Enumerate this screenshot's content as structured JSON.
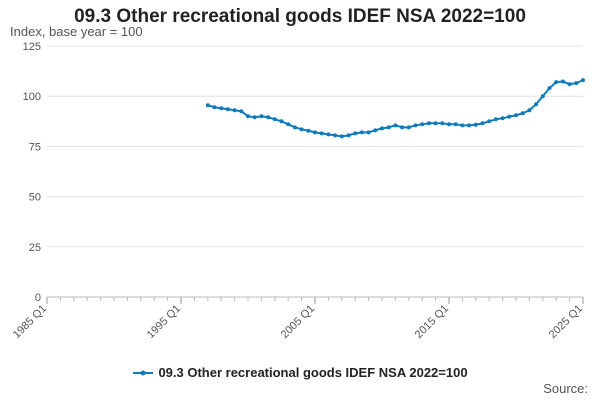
{
  "chart_data": {
    "type": "line",
    "title": "09.3 Other recreational goods IDEF NSA 2022=100",
    "ylabel": "Index, base year = 100",
    "xlabel": "",
    "ylim": [
      0,
      125
    ],
    "yticks": [
      0,
      25,
      50,
      75,
      100,
      125
    ],
    "xticks": [
      "1985 Q1",
      "1995 Q1",
      "2005 Q1",
      "2015 Q1",
      "2025 Q1"
    ],
    "xtick_years": [
      1985,
      1995,
      2005,
      2015,
      2025
    ],
    "xlim": [
      1985,
      2025
    ],
    "grid": true,
    "legend_position": "bottom",
    "series": [
      {
        "name": "09.3 Other recreational goods IDEF NSA 2022=100",
        "color": "#0f7bbd",
        "x": [
          1997.0,
          1997.5,
          1998.0,
          1998.5,
          1999.0,
          1999.5,
          2000.0,
          2000.5,
          2001.0,
          2001.5,
          2002.0,
          2002.5,
          2003.0,
          2003.5,
          2004.0,
          2004.5,
          2005.0,
          2005.5,
          2006.0,
          2006.5,
          2007.0,
          2007.5,
          2008.0,
          2008.5,
          2009.0,
          2009.5,
          2010.0,
          2010.5,
          2011.0,
          2011.5,
          2012.0,
          2012.5,
          2013.0,
          2013.5,
          2014.0,
          2014.5,
          2015.0,
          2015.5,
          2016.0,
          2016.5,
          2017.0,
          2017.5,
          2018.0,
          2018.5,
          2019.0,
          2019.5,
          2020.0,
          2020.5,
          2021.0,
          2021.5,
          2022.0,
          2022.5,
          2023.0,
          2023.5,
          2024.0,
          2024.5,
          2025.0
        ],
        "values": [
          95.5,
          94.5,
          94,
          93.5,
          93,
          92.5,
          90,
          89.5,
          90,
          89.5,
          88.5,
          87.5,
          86,
          84.5,
          83.5,
          82.8,
          82,
          81.5,
          81,
          80.5,
          80,
          80.5,
          81.5,
          82,
          82,
          83,
          84,
          84.5,
          85.5,
          84.5,
          84.5,
          85.5,
          86,
          86.5,
          86.5,
          86.5,
          86,
          86,
          85.5,
          85.5,
          85.8,
          86.5,
          87.5,
          88.5,
          89,
          89.8,
          90.5,
          91.5,
          93,
          96,
          100,
          104,
          107,
          107.3,
          106,
          106.5,
          108
        ]
      }
    ]
  },
  "source_label": "Source:"
}
